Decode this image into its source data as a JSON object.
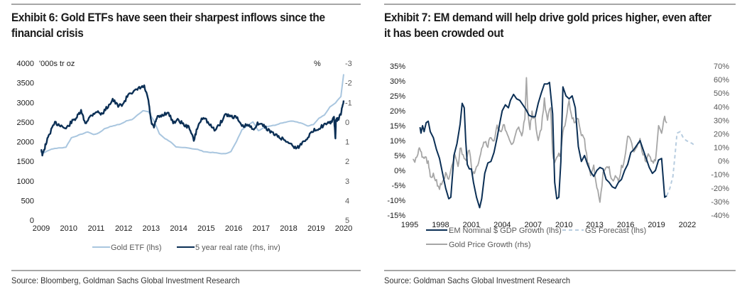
{
  "exhibit6": {
    "title": "Exhibit 6: Gold ETFs have seen their sharpest inflows since the financial crisis",
    "title_line1": "Exhibit 6: Gold ETFs have seen their sharpest inflows since the",
    "title_line2": "financial crisis",
    "source": "Source: Bloomberg, Goldman Sachs Global Investment Research"
  },
  "exhibit7": {
    "title": "Exhibit 7: EM demand will help drive gold prices higher, even after it has been crowded out",
    "title_line1": "Exhibit 7: EM demand will help drive gold prices higher, even after",
    "title_line2": "it has been crowded out",
    "source": "Source: Goldman Sachs Global Investment Research"
  },
  "colors": {
    "navy": "#0b2f55",
    "light_blue": "#a9c6df",
    "grey": "#a6a6a6",
    "forecast": "#b8cde0"
  },
  "chart_data": [
    {
      "type": "line",
      "title": "Exhibit 6: Gold ETFs have seen their sharpest inflows since the financial crisis",
      "xlabel": "",
      "ylabel": "'000s tr oz",
      "y2label": "%",
      "xlim": [
        2009,
        2020
      ],
      "ylim": [
        0,
        4000
      ],
      "y2lim": [
        -3,
        5
      ],
      "y2_inverted": true,
      "x_ticks": [
        "2009",
        "2010",
        "2011",
        "2012",
        "2013",
        "2014",
        "2015",
        "2016",
        "2017",
        "2018",
        "2019",
        "2020"
      ],
      "y_ticks": [
        "4000",
        "3500",
        "3000",
        "2500",
        "2000",
        "1500",
        "1000",
        "500",
        "0"
      ],
      "y2_ticks": [
        "-3",
        "-2",
        "-1",
        "0",
        "1",
        "2",
        "3",
        "4",
        "5"
      ],
      "grid": false,
      "legend": "bottom",
      "series": [
        {
          "name": "Gold ETF (lhs)",
          "axis": "left",
          "color": "#a9c6df",
          "x": [
            2009.0,
            2009.1,
            2009.3,
            2009.5,
            2009.7,
            2009.9,
            2010.1,
            2010.3,
            2010.5,
            2010.7,
            2010.9,
            2011.1,
            2011.3,
            2011.5,
            2011.7,
            2011.9,
            2012.1,
            2012.3,
            2012.5,
            2012.7,
            2012.9,
            2013.1,
            2013.3,
            2013.5,
            2013.7,
            2013.9,
            2014.1,
            2014.3,
            2014.5,
            2014.7,
            2014.9,
            2015.1,
            2015.3,
            2015.5,
            2015.7,
            2015.9,
            2016.1,
            2016.3,
            2016.5,
            2016.7,
            2016.9,
            2017.1,
            2017.3,
            2017.5,
            2017.7,
            2017.9,
            2018.1,
            2018.3,
            2018.5,
            2018.7,
            2018.9,
            2019.1,
            2019.3,
            2019.5,
            2019.7,
            2019.9,
            2020.0
          ],
          "values": [
            1680,
            1720,
            1790,
            1830,
            1840,
            1860,
            2100,
            2150,
            2200,
            2250,
            2180,
            2220,
            2330,
            2380,
            2420,
            2450,
            2530,
            2560,
            2680,
            2790,
            2760,
            2530,
            2200,
            2080,
            2000,
            1860,
            1850,
            1850,
            1820,
            1800,
            1750,
            1730,
            1720,
            1700,
            1690,
            1750,
            2000,
            2300,
            2420,
            2500,
            2280,
            2360,
            2400,
            2420,
            2470,
            2500,
            2530,
            2500,
            2460,
            2400,
            2440,
            2600,
            2680,
            2880,
            2990,
            3150,
            3720
          ]
        },
        {
          "name": "5 year real rate (rhs, inv)",
          "axis": "right",
          "color": "#0b2f55",
          "x": [
            2009.0,
            2009.05,
            2009.15,
            2009.3,
            2009.5,
            2009.7,
            2009.9,
            2010.1,
            2010.3,
            2010.45,
            2010.6,
            2010.8,
            2011.0,
            2011.2,
            2011.4,
            2011.6,
            2011.8,
            2012.0,
            2012.2,
            2012.4,
            2012.6,
            2012.75,
            2012.9,
            2013.0,
            2013.1,
            2013.2,
            2013.4,
            2013.6,
            2013.8,
            2014.0,
            2014.2,
            2014.4,
            2014.55,
            2014.7,
            2014.9,
            2015.1,
            2015.3,
            2015.5,
            2015.7,
            2015.9,
            2016.1,
            2016.3,
            2016.5,
            2016.7,
            2016.9,
            2017.1,
            2017.3,
            2017.5,
            2017.7,
            2017.9,
            2018.1,
            2018.3,
            2018.5,
            2018.7,
            2018.9,
            2019.1,
            2019.3,
            2019.5,
            2019.65,
            2019.7,
            2019.72,
            2019.8,
            2019.9,
            2020.0
          ],
          "values": [
            1.35,
            1.7,
            1.2,
            0.6,
            0.05,
            0.15,
            0.35,
            0.0,
            -0.25,
            -0.55,
            0.05,
            -0.3,
            -0.55,
            -0.4,
            -0.75,
            -1.15,
            -0.8,
            -0.95,
            -1.5,
            -1.55,
            -1.75,
            -1.8,
            -1.1,
            0.0,
            0.3,
            -0.2,
            -0.35,
            -0.5,
            0.0,
            -0.1,
            0.15,
            0.3,
            0.95,
            0.2,
            -0.3,
            0.1,
            0.4,
            0.1,
            -0.4,
            -0.3,
            -0.25,
            0.25,
            0.15,
            0.35,
            0.05,
            0.2,
            0.45,
            0.65,
            0.8,
            0.95,
            1.15,
            1.35,
            1.05,
            0.75,
            0.45,
            0.3,
            0.15,
            0.05,
            -0.2,
            0.85,
            -0.1,
            -0.15,
            -0.4,
            -1.1
          ]
        }
      ]
    },
    {
      "type": "line",
      "title": "Exhibit 7: EM demand will help drive gold prices higher, even after it has been crowded out",
      "xlabel": "",
      "ylabel": "",
      "xlim": [
        1995,
        2022
      ],
      "ylim": [
        -0.15,
        0.35
      ],
      "y2lim": [
        -0.4,
        0.7
      ],
      "x_ticks": [
        "1995",
        "1998",
        "2001",
        "2004",
        "2007",
        "2010",
        "2013",
        "2016",
        "2019",
        "2022"
      ],
      "y_ticks": [
        "35%",
        "30%",
        "25%",
        "20%",
        "15%",
        "10%",
        "5%",
        "0%",
        "-5%",
        "-10%",
        "-15%"
      ],
      "y2_ticks": [
        "70%",
        "60%",
        "50%",
        "40%",
        "30%",
        "20%",
        "10%",
        "0%",
        "-10%",
        "-20%",
        "-30%",
        "-40%"
      ],
      "grid": false,
      "legend": "bottom",
      "series": [
        {
          "name": "EM Nominal $ GDP Growth (lhs)",
          "axis": "left",
          "color": "#0b2f55",
          "x": [
            1996.0,
            1996.1,
            1996.25,
            1996.4,
            1996.6,
            1996.8,
            1997.0,
            1997.3,
            1997.6,
            1997.9,
            1998.2,
            1998.5,
            1998.8,
            1999.0,
            1999.2,
            1999.3,
            1999.6,
            1999.9,
            2000.1,
            2000.3,
            2000.45,
            2000.6,
            2000.8,
            2001.0,
            2001.2,
            2001.5,
            2001.8,
            2002.0,
            2002.3,
            2002.6,
            2002.9,
            2003.2,
            2003.5,
            2003.8,
            2004.0,
            2004.3,
            2004.6,
            2004.8,
            2005.1,
            2005.4,
            2005.7,
            2006.0,
            2006.3,
            2006.6,
            2006.9,
            2007.2,
            2007.5,
            2007.8,
            2008.1,
            2008.4,
            2008.6,
            2008.9,
            2009.1,
            2009.3,
            2009.5,
            2009.7,
            2009.9,
            2010.2,
            2010.5,
            2010.8,
            2011.1,
            2011.4,
            2011.7,
            2012.0,
            2012.3,
            2012.6,
            2012.9,
            2013.2,
            2013.5,
            2013.8,
            2014.1,
            2014.4,
            2014.7,
            2015.0,
            2015.3,
            2015.6,
            2015.9,
            2016.2,
            2016.5,
            2016.8,
            2017.1,
            2017.4,
            2017.7,
            2018.0,
            2018.3,
            2018.6,
            2018.9,
            2019.2,
            2019.5,
            2019.8,
            2020.0
          ],
          "values": [
            0.145,
            0.125,
            0.15,
            0.13,
            0.16,
            0.165,
            0.13,
            0.11,
            0.07,
            0.04,
            -0.01,
            -0.06,
            -0.095,
            -0.09,
            0.0,
            0.05,
            0.09,
            0.155,
            0.225,
            0.21,
            0.1,
            0.02,
            0.005,
            0.005,
            -0.04,
            -0.09,
            -0.125,
            -0.095,
            -0.01,
            0.025,
            0.03,
            0.06,
            0.11,
            0.165,
            0.2,
            0.22,
            0.21,
            0.235,
            0.255,
            0.24,
            0.235,
            0.22,
            0.205,
            0.185,
            0.18,
            0.18,
            0.225,
            0.26,
            0.29,
            0.29,
            0.295,
            0.19,
            -0.04,
            -0.095,
            -0.09,
            0.03,
            0.28,
            0.25,
            0.24,
            0.25,
            0.21,
            0.08,
            0.03,
            0.05,
            0.02,
            -0.005,
            -0.02,
            0.0,
            0.01,
            0.005,
            -0.03,
            -0.04,
            -0.055,
            -0.06,
            -0.04,
            -0.03,
            0.0,
            0.02,
            0.06,
            0.07,
            0.085,
            0.1,
            0.07,
            0.04,
            0.01,
            -0.01,
            0.0,
            0.035,
            0.04,
            -0.09,
            -0.085
          ]
        },
        {
          "name": "Gold Price Growth (rhs)",
          "axis": "right",
          "color": "#a6a6a6",
          "x": [
            1995.3,
            1995.5,
            1995.8,
            1996.0,
            1996.2,
            1996.5,
            1996.8,
            1997.0,
            1997.3,
            1997.6,
            1997.9,
            1998.2,
            1998.5,
            1998.8,
            1999.1,
            1999.4,
            1999.7,
            1999.9,
            2000.2,
            2000.5,
            2000.8,
            2001.1,
            2001.4,
            2001.7,
            2002.0,
            2002.3,
            2002.6,
            2002.9,
            2003.2,
            2003.5,
            2003.8,
            2004.1,
            2004.4,
            2004.7,
            2005.0,
            2005.3,
            2005.6,
            2005.9,
            2006.2,
            2006.35,
            2006.5,
            2006.7,
            2006.9,
            2007.2,
            2007.5,
            2007.8,
            2008.1,
            2008.4,
            2008.7,
            2008.9,
            2009.1,
            2009.4,
            2009.7,
            2009.9,
            2010.2,
            2010.5,
            2010.8,
            2011.1,
            2011.4,
            2011.7,
            2012.0,
            2012.3,
            2012.6,
            2012.9,
            2013.2,
            2013.5,
            2013.8,
            2014.1,
            2014.4,
            2014.7,
            2015.0,
            2015.3,
            2015.6,
            2015.9,
            2016.2,
            2016.5,
            2016.8,
            2017.1,
            2017.4,
            2017.7,
            2018.0,
            2018.3,
            2018.6,
            2018.9,
            2019.2,
            2019.5,
            2019.8,
            2020.0
          ],
          "values": [
            0.03,
            0.0,
            0.05,
            0.1,
            0.02,
            0.03,
            -0.02,
            -0.12,
            -0.1,
            -0.15,
            -0.2,
            -0.15,
            -0.1,
            -0.15,
            -0.05,
            0.05,
            -0.05,
            0.1,
            0.04,
            0.02,
            0.1,
            -0.12,
            -0.05,
            0.0,
            0.1,
            0.15,
            0.12,
            0.18,
            0.15,
            0.25,
            0.2,
            0.28,
            0.2,
            0.15,
            0.12,
            0.2,
            0.25,
            0.2,
            0.3,
            0.6,
            0.35,
            0.25,
            0.35,
            0.3,
            0.15,
            0.25,
            0.45,
            0.3,
            0.4,
            0.05,
            0.0,
            0.05,
            0.05,
            0.2,
            0.3,
            0.45,
            0.3,
            0.3,
            0.3,
            0.2,
            0.15,
            0.0,
            -0.1,
            -0.05,
            -0.2,
            -0.3,
            -0.1,
            -0.05,
            -0.05,
            -0.15,
            -0.1,
            -0.15,
            -0.05,
            0.0,
            0.2,
            0.15,
            0.05,
            0.1,
            0.15,
            0.05,
            0.0,
            0.05,
            0.0,
            0.0,
            0.25,
            0.2,
            0.33,
            0.28
          ]
        },
        {
          "name": "GS Forecast (lhs)",
          "axis": "left",
          "color": "#b8cde0",
          "dashed": true,
          "x": [
            2020.0,
            2020.3,
            2020.6,
            2020.8,
            2021.0,
            2021.3,
            2021.6,
            2021.9,
            2022.2,
            2022.5,
            2022.8
          ],
          "values": [
            -0.085,
            -0.06,
            -0.02,
            0.05,
            0.125,
            0.13,
            0.11,
            0.1,
            0.095,
            0.09,
            0.08
          ]
        }
      ]
    }
  ]
}
